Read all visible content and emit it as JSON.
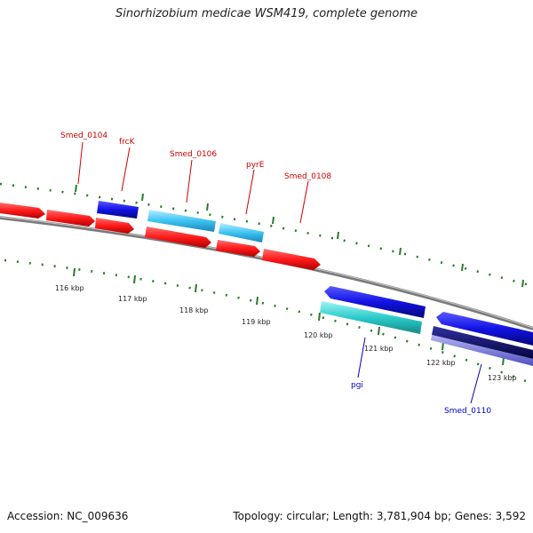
{
  "title": "Sinorhizobium medicae WSM419, complete genome",
  "footer": {
    "accession": "Accession: NC_009636",
    "stats": "Topology: circular; Length: 3,781,904 bp; Genes: 3,592"
  },
  "colors": {
    "forward_gene": "#ff2020",
    "forward_gene_dark": "#b00000",
    "highlight_blue": "#1010e0",
    "highlight_cyan": "#40c8f0",
    "reverse_gene": "#1010e0",
    "reverse_cyan": "#30d0d0",
    "reverse_dark": "#0a0a70",
    "reverse_purple": "#7070d8",
    "backbone": "#888888",
    "tick": "#2a7a2a",
    "forward_label": "#cc0000",
    "reverse_label": "#0000cc"
  },
  "gene_labels": {
    "smed_0104": "Smed_0104",
    "frck": "frcK",
    "smed_0106": "Smed_0106",
    "pyre": "pyrE",
    "smed_0108": "Smed_0108",
    "pgi": "pgi",
    "smed_0110": "Smed_0110"
  },
  "ruler_labels": {
    "kbp116": "116 kbp",
    "kbp117": "117 kbp",
    "kbp118": "118 kbp",
    "kbp119": "119 kbp",
    "kbp120": "120 kbp",
    "kbp121": "121 kbp",
    "kbp122": "122 kbp",
    "kbp123": "123 kbp"
  }
}
